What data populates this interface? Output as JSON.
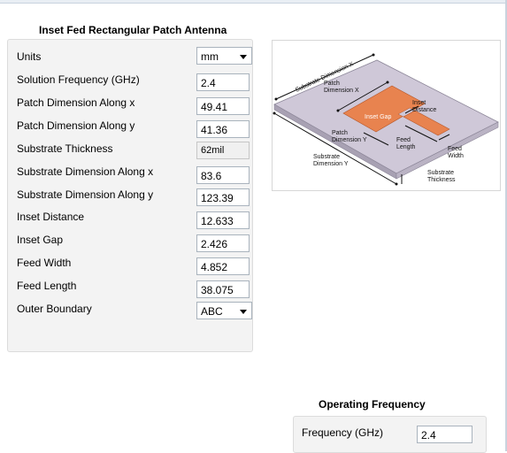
{
  "title": "Inset Fed Rectangular Patch Antenna",
  "params": [
    {
      "label": "Units",
      "value": "mm",
      "type": "select"
    },
    {
      "label": "Solution Frequency (GHz)",
      "value": "2.4",
      "type": "input"
    },
    {
      "label": "Patch Dimension Along x",
      "value": "49.41",
      "type": "input"
    },
    {
      "label": "Patch Dimension Along y",
      "value": "41.36",
      "type": "input"
    },
    {
      "label": "Substrate Thickness",
      "value": "62mil",
      "type": "readonly"
    },
    {
      "label": "Substrate Dimension Along x",
      "value": "83.6",
      "type": "input"
    },
    {
      "label": "Substrate Dimension Along y",
      "value": "123.39",
      "type": "input"
    },
    {
      "label": "Inset Distance",
      "value": "12.633",
      "type": "input"
    },
    {
      "label": "Inset Gap",
      "value": "2.426",
      "type": "input"
    },
    {
      "label": "Feed Width",
      "value": "4.852",
      "type": "input"
    },
    {
      "label": "Feed Length",
      "value": "38.075",
      "type": "input"
    },
    {
      "label": "Outer Boundary",
      "value": "ABC",
      "type": "select"
    }
  ],
  "diagram": {
    "substrate_x": "Substrate Dimension X",
    "patch_x_line1": "Patch",
    "patch_x_line2": "Dimension X",
    "inset_gap": "Inset Gap",
    "inset_distance_line1": "Inset",
    "inset_distance_line2": "Distance",
    "patch_y_line1": "Patch",
    "patch_y_line2": "Dimension Y",
    "feed_length_line1": "Feed",
    "feed_length_line2": "Length",
    "feed_width_line1": "Feed",
    "feed_width_line2": "Width",
    "substrate_y_line1": "Substrate",
    "substrate_y_line2": "Dimension Y",
    "substrate_thickness_line1": "Substrate",
    "substrate_thickness_line2": "Thickness",
    "colors": {
      "substrate": "#cdc6d6",
      "patch": "#e8834f",
      "line": "#111111"
    }
  },
  "operating": {
    "title": "Operating Frequency",
    "label": "Frequency (GHz)",
    "value": "2.4"
  }
}
